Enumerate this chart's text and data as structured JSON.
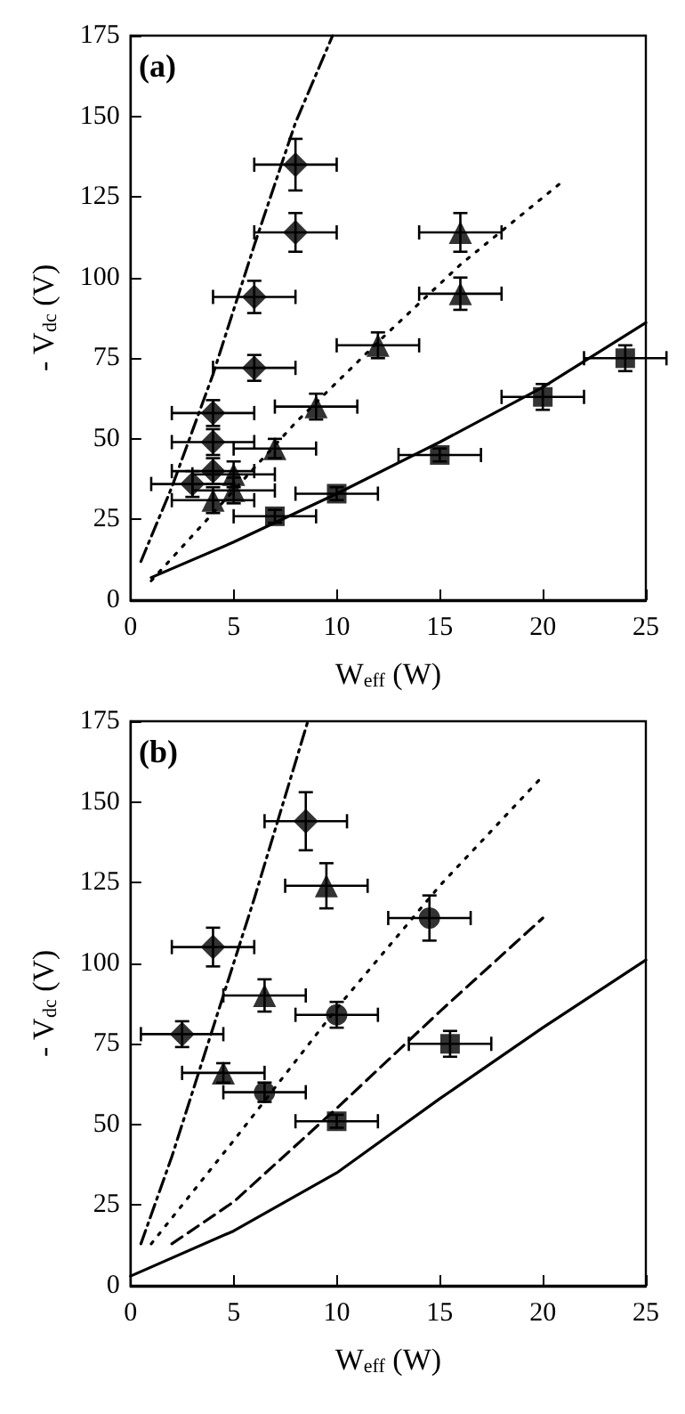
{
  "chart_data": [
    {
      "type": "scatter",
      "xlabel": "W$_{eff}$ (W)",
      "ylabel": "- V$_{dc}$ (V)",
      "annotations": [
        "(a)"
      ],
      "xlim": [
        0,
        25
      ],
      "ylim": [
        0,
        175
      ],
      "xticks": [
        0,
        5,
        10,
        15,
        20,
        25
      ],
      "yticks": [
        0,
        25,
        50,
        75,
        100,
        125,
        150,
        175
      ],
      "series": [
        {
          "type": "scatter",
          "marker": "diamond",
          "color": "#000000",
          "x": [
            3,
            4,
            4,
            4,
            6,
            6,
            8,
            8
          ],
          "values": [
            36,
            40,
            49,
            58,
            72,
            94,
            114,
            135
          ],
          "errors": [
            4,
            4,
            4,
            4,
            4,
            5,
            6,
            8
          ],
          "xerrors": [
            2,
            2,
            2,
            2,
            2,
            2,
            2,
            2
          ]
        },
        {
          "type": "scatter",
          "marker": "triangle",
          "color": "#000000",
          "x": [
            4,
            5,
            5,
            7,
            9,
            12,
            16,
            16
          ],
          "values": [
            31,
            34,
            39,
            47,
            60,
            79,
            95,
            114
          ],
          "errors": [
            4,
            4,
            4,
            3,
            4,
            4,
            5,
            6
          ],
          "xerrors": [
            2,
            2,
            2,
            2,
            2,
            2,
            2,
            2
          ]
        },
        {
          "type": "scatter",
          "marker": "square",
          "color": "#000000",
          "x": [
            7,
            10,
            15,
            20,
            24
          ],
          "values": [
            26,
            33,
            45,
            63,
            75
          ],
          "errors": [
            2,
            2,
            2,
            4,
            4
          ],
          "xerrors": [
            2,
            2,
            2,
            2,
            2
          ]
        },
        {
          "type": "line",
          "line_style": "solid",
          "color": "#000000",
          "x": [
            1,
            5,
            10,
            15,
            20,
            25
          ],
          "values": [
            7,
            18,
            33,
            49,
            66,
            86
          ]
        },
        {
          "type": "line",
          "line_style": "dashdot",
          "color": "#000000",
          "x": [
            0.5,
            2,
            4,
            6,
            8,
            9.8
          ],
          "values": [
            12,
            35,
            70,
            110,
            148,
            175
          ]
        },
        {
          "type": "line",
          "line_style": "dotted",
          "color": "#000000",
          "x": [
            1,
            3,
            5,
            8,
            12,
            16,
            21
          ],
          "values": [
            6,
            20,
            34,
            55,
            80,
            104,
            130
          ]
        }
      ]
    },
    {
      "type": "scatter",
      "xlabel": "W$_{eff}$ (W)",
      "ylabel": "- V$_{dc}$ (V)",
      "annotations": [
        "(b)"
      ],
      "xlim": [
        0,
        25
      ],
      "ylim": [
        0,
        175
      ],
      "xticks": [
        0,
        5,
        10,
        15,
        20,
        25
      ],
      "yticks": [
        0,
        25,
        50,
        75,
        100,
        125,
        150,
        175
      ],
      "series": [
        {
          "type": "scatter",
          "marker": "diamond",
          "color": "#000000",
          "x": [
            2.5,
            4,
            8.5
          ],
          "values": [
            78,
            105,
            144
          ],
          "errors": [
            4,
            6,
            9
          ],
          "xerrors": [
            2,
            2,
            2
          ]
        },
        {
          "type": "scatter",
          "marker": "triangle",
          "color": "#000000",
          "x": [
            4.5,
            6.5,
            9.5
          ],
          "values": [
            66,
            90,
            124
          ],
          "errors": [
            3,
            5,
            7
          ],
          "xerrors": [
            2,
            2,
            2
          ]
        },
        {
          "type": "scatter",
          "marker": "circle",
          "color": "#000000",
          "x": [
            6.5,
            10,
            14.5
          ],
          "values": [
            60,
            84,
            114
          ],
          "errors": [
            3,
            4,
            7
          ],
          "xerrors": [
            2,
            2,
            2
          ]
        },
        {
          "type": "scatter",
          "marker": "square",
          "color": "#000000",
          "x": [
            10,
            15.5
          ],
          "values": [
            51,
            75
          ],
          "errors": [
            2,
            4
          ],
          "xerrors": [
            2,
            2
          ]
        },
        {
          "type": "line",
          "line_style": "solid",
          "color": "#000000",
          "x": [
            0,
            5,
            10,
            15,
            20,
            25
          ],
          "values": [
            3,
            17,
            35,
            58,
            80,
            101
          ]
        },
        {
          "type": "line",
          "line_style": "dashed",
          "color": "#000000",
          "x": [
            2,
            5,
            10,
            15,
            20
          ],
          "values": [
            13,
            26,
            55,
            85,
            114
          ]
        },
        {
          "type": "line",
          "line_style": "dotted",
          "color": "#000000",
          "x": [
            1,
            5,
            10,
            15,
            20
          ],
          "values": [
            13,
            45,
            86,
            124,
            158
          ]
        },
        {
          "type": "line",
          "line_style": "dashdot",
          "color": "#000000",
          "x": [
            0.5,
            2,
            4,
            6,
            8.6
          ],
          "values": [
            13,
            40,
            80,
            120,
            175
          ]
        }
      ]
    }
  ]
}
